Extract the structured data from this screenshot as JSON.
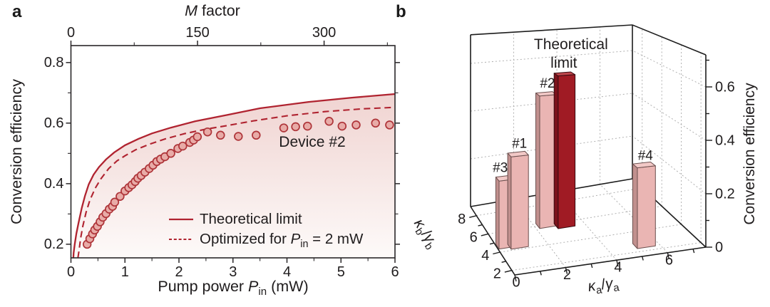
{
  "panels": {
    "a": {
      "label": "a"
    },
    "b": {
      "label": "b"
    }
  },
  "colors": {
    "curve_red": "#b02330",
    "marker_fill": "#e8aba7",
    "marker_edge": "#ae3439",
    "fill_top": "#ecc8c5",
    "fill_bottom": "#fdfaf9",
    "axis": "#2a2729",
    "text": "#1f1c1d",
    "grid": "#a8a8a8",
    "bar_pink": {
      "front": "#eab5b3",
      "side": "#c1908e",
      "top": "#f2c9c7",
      "stroke": "#6b4f4e"
    },
    "bar_darkred": {
      "front": "#a01b24",
      "side": "#7a121b",
      "top": "#bf464c",
      "stroke": "#390b10"
    }
  },
  "chart_data": [
    {
      "panel": "a",
      "type": "line",
      "ylabel": "Conversion efficiency",
      "xlabel_parts": [
        {
          "t": "Pump power "
        },
        {
          "t": "P",
          "italic": true
        },
        {
          "t": "in",
          "sub": true
        },
        {
          "t": " (mW)"
        }
      ],
      "top_axis": {
        "label_parts": [
          {
            "t": "M",
            "italic": true
          },
          {
            "t": " factor"
          }
        ],
        "range": [
          0,
          384
        ],
        "major_ticks": [
          0,
          150,
          300
        ],
        "minor_ticks": [
          75,
          225,
          375
        ]
      },
      "xlim": [
        0,
        6
      ],
      "ylim": [
        0.155,
        0.856
      ],
      "xticks": [
        0,
        1,
        2,
        3,
        4,
        5,
        6
      ],
      "x_minor_ticks": [
        0.5,
        1.5,
        2.5,
        3.5,
        4.5,
        5.5
      ],
      "yticks": [
        0.2,
        0.4,
        0.6,
        0.8
      ],
      "y_minor_ticks": [
        0.3,
        0.5,
        0.7
      ],
      "annotation": "Device #2",
      "series": [
        {
          "name": "Theoretical limit",
          "label_parts": [
            {
              "t": "Theoretical limit"
            }
          ],
          "type": "line",
          "style": "solid",
          "fill_under": true,
          "points": [
            [
              0.045,
              0.155
            ],
            [
              0.05,
              0.172
            ],
            [
              0.07,
              0.2
            ],
            [
              0.1,
              0.235
            ],
            [
              0.14,
              0.27
            ],
            [
              0.2,
              0.32
            ],
            [
              0.26,
              0.36
            ],
            [
              0.33,
              0.398
            ],
            [
              0.42,
              0.43
            ],
            [
              0.52,
              0.455
            ],
            [
              0.65,
              0.48
            ],
            [
              0.8,
              0.503
            ],
            [
              1.0,
              0.527
            ],
            [
              1.25,
              0.548
            ],
            [
              1.5,
              0.566
            ],
            [
              1.85,
              0.585
            ],
            [
              2.3,
              0.606
            ],
            [
              2.9,
              0.627
            ],
            [
              3.5,
              0.649
            ],
            [
              4.4,
              0.67
            ],
            [
              5.2,
              0.684
            ],
            [
              6.0,
              0.696
            ]
          ]
        },
        {
          "name": "Optimized for Pin = 2 mW",
          "label_parts": [
            {
              "t": "Optimized for "
            },
            {
              "t": "P",
              "italic": true
            },
            {
              "t": "in",
              "sub": true
            },
            {
              "t": " = 2 mW"
            }
          ],
          "type": "line",
          "style": "dashed",
          "points": [
            [
              0.13,
              0.155
            ],
            [
              0.15,
              0.18
            ],
            [
              0.18,
              0.22
            ],
            [
              0.22,
              0.26
            ],
            [
              0.28,
              0.305
            ],
            [
              0.35,
              0.345
            ],
            [
              0.45,
              0.385
            ],
            [
              0.55,
              0.415
            ],
            [
              0.7,
              0.45
            ],
            [
              0.85,
              0.475
            ],
            [
              1.0,
              0.492
            ],
            [
              1.2,
              0.512
            ],
            [
              1.45,
              0.53
            ],
            [
              1.75,
              0.548
            ],
            [
              2.1,
              0.565
            ],
            [
              2.5,
              0.58
            ],
            [
              2.9,
              0.592
            ],
            [
              3.4,
              0.608
            ],
            [
              4.0,
              0.624
            ],
            [
              4.7,
              0.638
            ],
            [
              5.4,
              0.647
            ],
            [
              6.0,
              0.652
            ]
          ]
        },
        {
          "name": "Device #2",
          "type": "scatter",
          "points": [
            [
              0.3,
              0.2
            ],
            [
              0.35,
              0.218
            ],
            [
              0.4,
              0.234
            ],
            [
              0.44,
              0.247
            ],
            [
              0.49,
              0.259
            ],
            [
              0.54,
              0.274
            ],
            [
              0.59,
              0.289
            ],
            [
              0.65,
              0.301
            ],
            [
              0.71,
              0.316
            ],
            [
              0.77,
              0.325
            ],
            [
              0.81,
              0.339
            ],
            [
              0.91,
              0.358
            ],
            [
              1.0,
              0.376
            ],
            [
              1.07,
              0.387
            ],
            [
              1.13,
              0.396
            ],
            [
              1.19,
              0.407
            ],
            [
              1.24,
              0.418
            ],
            [
              1.3,
              0.427
            ],
            [
              1.37,
              0.438
            ],
            [
              1.45,
              0.45
            ],
            [
              1.52,
              0.461
            ],
            [
              1.59,
              0.473
            ],
            [
              1.66,
              0.481
            ],
            [
              1.74,
              0.489
            ],
            [
              1.85,
              0.5
            ],
            [
              1.98,
              0.516
            ],
            [
              2.07,
              0.524
            ],
            [
              2.2,
              0.536
            ],
            [
              2.27,
              0.544
            ],
            [
              2.34,
              0.555
            ],
            [
              2.53,
              0.571
            ],
            [
              2.77,
              0.56
            ],
            [
              3.1,
              0.556
            ],
            [
              3.43,
              0.56
            ],
            [
              3.94,
              0.584
            ],
            [
              4.16,
              0.588
            ],
            [
              4.38,
              0.59
            ],
            [
              4.78,
              0.606
            ],
            [
              5.02,
              0.59
            ],
            [
              5.28,
              0.594
            ],
            [
              5.64,
              0.6
            ],
            [
              5.9,
              0.594
            ]
          ]
        }
      ]
    },
    {
      "panel": "b",
      "type": "bar3d",
      "ka_axis": {
        "label_parts": [
          {
            "t": "κ",
            "italic": true
          },
          {
            "t": "a",
            "sub": true
          },
          {
            "t": "/"
          },
          {
            "t": "γ",
            "italic": true
          },
          {
            "t": "a",
            "sub": true
          }
        ],
        "range": [
          0,
          7.5
        ],
        "major_ticks": [
          0,
          2,
          4,
          6
        ],
        "minor_ticks": [
          1,
          3,
          5,
          7
        ]
      },
      "kb_axis": {
        "label_parts": [
          {
            "t": "κ",
            "italic": true
          },
          {
            "t": "b",
            "sub": true
          },
          {
            "t": "/"
          },
          {
            "t": "γ",
            "italic": true
          },
          {
            "t": "b",
            "sub": true
          }
        ],
        "range": [
          1.5,
          9
        ],
        "major_ticks": [
          2,
          4,
          6,
          8
        ],
        "minor_ticks": [
          3,
          5,
          7
        ]
      },
      "z_axis": {
        "label": "Conversion efficiency",
        "range": [
          0,
          0.72
        ],
        "major_ticks": [
          0,
          0.2,
          0.4,
          0.6
        ],
        "minor_ticks": [
          0.1,
          0.3,
          0.5,
          0.7
        ]
      },
      "bars": [
        {
          "label": "#2",
          "ka_over_ga": 2.5,
          "kb_over_gb": 6.0,
          "efficiency": 0.52,
          "color": "pink"
        },
        {
          "label": "Theoretical limit",
          "label_lines": [
            "Theoretical",
            "limit"
          ],
          "ka_over_ga": 3.2,
          "kb_over_gb": 5.7,
          "efficiency": 0.6,
          "color": "darkred"
        },
        {
          "label": "#3",
          "ka_over_ga": 0.4,
          "kb_over_gb": 4.6,
          "efficiency": 0.25,
          "color": "pink"
        },
        {
          "label": "#1",
          "ka_over_ga": 0.85,
          "kb_over_gb": 4.4,
          "efficiency": 0.34,
          "color": "pink"
        },
        {
          "label": "#4",
          "ka_over_ga": 5.45,
          "kb_over_gb": 2.6,
          "efficiency": 0.3,
          "color": "pink"
        }
      ]
    }
  ]
}
